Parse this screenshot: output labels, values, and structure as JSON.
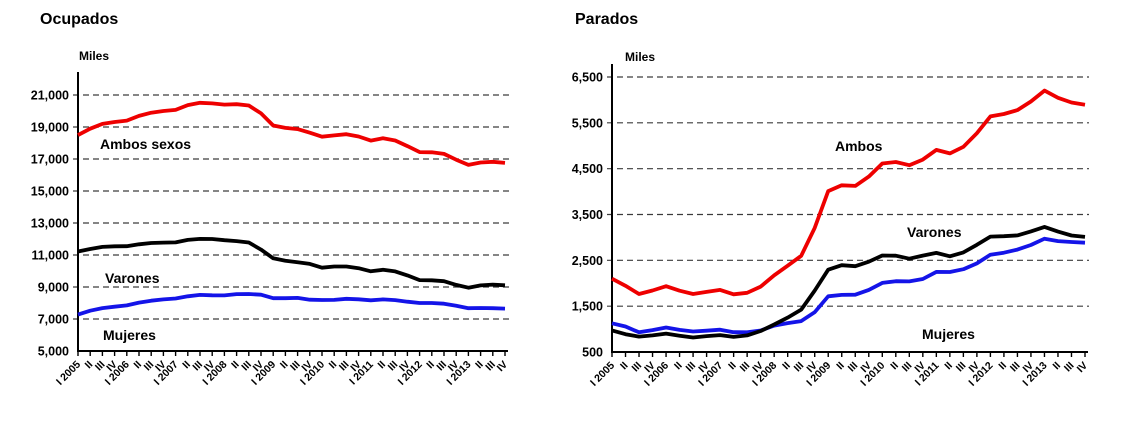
{
  "chart_data": [
    {
      "type": "line",
      "title": "Ocupados",
      "unit_label": "Miles",
      "grid": "horizontal-dashed",
      "legend_position": "inline-labels",
      "x": [
        "I 2005",
        "II",
        "III",
        "IV",
        "I 2006",
        "II",
        "III",
        "IV",
        "I 2007",
        "II",
        "III",
        "IV",
        "I 2008",
        "II",
        "III",
        "IV",
        "I 2009",
        "II",
        "III",
        "IV",
        "I 2010",
        "II",
        "III",
        "IV",
        "I 2011",
        "II",
        "III",
        "IV",
        "I 2012",
        "II",
        "III",
        "IV",
        "I 2013",
        "II",
        "III",
        "IV"
      ],
      "y_ticks": {
        "values": [
          21000,
          19000,
          17000,
          15000,
          13000,
          11000,
          9000,
          7000,
          5000
        ],
        "labels": [
          "21,000",
          "19,000",
          "17,000",
          "15,000",
          "13,000",
          "11,000",
          "9,000",
          "7,000",
          "5,000"
        ]
      },
      "ylim": [
        5000,
        22400
      ],
      "series": [
        {
          "name": "Ambos sexos",
          "color": "#ee0000",
          "values": [
            18493,
            18895,
            19191,
            19314,
            19400,
            19693,
            19896,
            20002,
            20069,
            20367,
            20511,
            20477,
            20402,
            20425,
            20346,
            19857,
            19091,
            18945,
            18870,
            18646,
            18394,
            18477,
            18547,
            18408,
            18152,
            18303,
            18156,
            17807,
            17433,
            17417,
            17320,
            16957,
            16634,
            16784,
            16823,
            16758
          ]
        },
        {
          "name": "Varones",
          "color": "#000000",
          "values": [
            11219,
            11376,
            11508,
            11546,
            11550,
            11668,
            11750,
            11774,
            11790,
            11946,
            12006,
            11997,
            11924,
            11868,
            11782,
            11340,
            10793,
            10646,
            10553,
            10442,
            10207,
            10284,
            10284,
            10176,
            9983,
            10077,
            9976,
            9728,
            9434,
            9416,
            9361,
            9133,
            8959,
            9097,
            9150,
            9108
          ]
        },
        {
          "name": "Mujeres",
          "color": "#1414e8",
          "values": [
            7274,
            7519,
            7683,
            7768,
            7850,
            8025,
            8146,
            8228,
            8279,
            8421,
            8505,
            8480,
            8478,
            8557,
            8564,
            8517,
            8298,
            8299,
            8317,
            8204,
            8187,
            8193,
            8263,
            8232,
            8170,
            8226,
            8180,
            8079,
            7999,
            8001,
            7959,
            7824,
            7676,
            7687,
            7673,
            7650
          ]
        }
      ]
    },
    {
      "type": "line",
      "title": "Parados",
      "unit_label": "Miles",
      "grid": "horizontal-dashed",
      "legend_position": "inline-labels",
      "x": [
        "I 2005",
        "II",
        "III",
        "IV",
        "I 2006",
        "II",
        "III",
        "IV",
        "I 2007",
        "II",
        "III",
        "IV",
        "I 2008",
        "II",
        "III",
        "IV",
        "I 2009",
        "II",
        "III",
        "IV",
        "I 2010",
        "II",
        "III",
        "IV",
        "I 2011",
        "II",
        "III",
        "IV",
        "I 2012",
        "II",
        "III",
        "IV",
        "I 2013",
        "II",
        "III",
        "IV"
      ],
      "y_ticks": {
        "values": [
          6500,
          5500,
          4500,
          3500,
          2500,
          1500,
          500
        ],
        "labels": [
          "6,500",
          "5,500",
          "4,500",
          "3,500",
          "2,500",
          "1,500",
          "500"
        ]
      },
      "ylim": [
        500,
        6800
      ],
      "series": [
        {
          "name": "Ambos",
          "color": "#ee0000",
          "values": [
            2099,
            1945,
            1766,
            1841,
            1936,
            1837,
            1765,
            1811,
            1856,
            1760,
            1792,
            1928,
            2174,
            2382,
            2599,
            3208,
            4011,
            4138,
            4123,
            4327,
            4613,
            4646,
            4575,
            4697,
            4910,
            4834,
            4978,
            5274,
            5640,
            5693,
            5778,
            5965,
            6203,
            6047,
            5943,
            5896
          ]
        },
        {
          "name": "Varones",
          "color": "#000000",
          "values": [
            972,
            889,
            836,
            863,
            902,
            855,
            817,
            846,
            869,
            829,
            863,
            958,
            1099,
            1251,
            1424,
            1839,
            2296,
            2393,
            2373,
            2471,
            2606,
            2602,
            2535,
            2604,
            2663,
            2589,
            2672,
            2840,
            3017,
            3026,
            3043,
            3131,
            3230,
            3128,
            3042,
            3011
          ]
        },
        {
          "name": "Mujeres",
          "color": "#1414e8",
          "values": [
            1127,
            1056,
            930,
            978,
            1034,
            982,
            948,
            965,
            987,
            931,
            929,
            970,
            1075,
            1131,
            1175,
            1369,
            1715,
            1745,
            1750,
            1856,
            2007,
            2044,
            2040,
            2093,
            2247,
            2245,
            2306,
            2434,
            2623,
            2667,
            2735,
            2834,
            2973,
            2919,
            2901,
            2885
          ]
        }
      ]
    }
  ]
}
